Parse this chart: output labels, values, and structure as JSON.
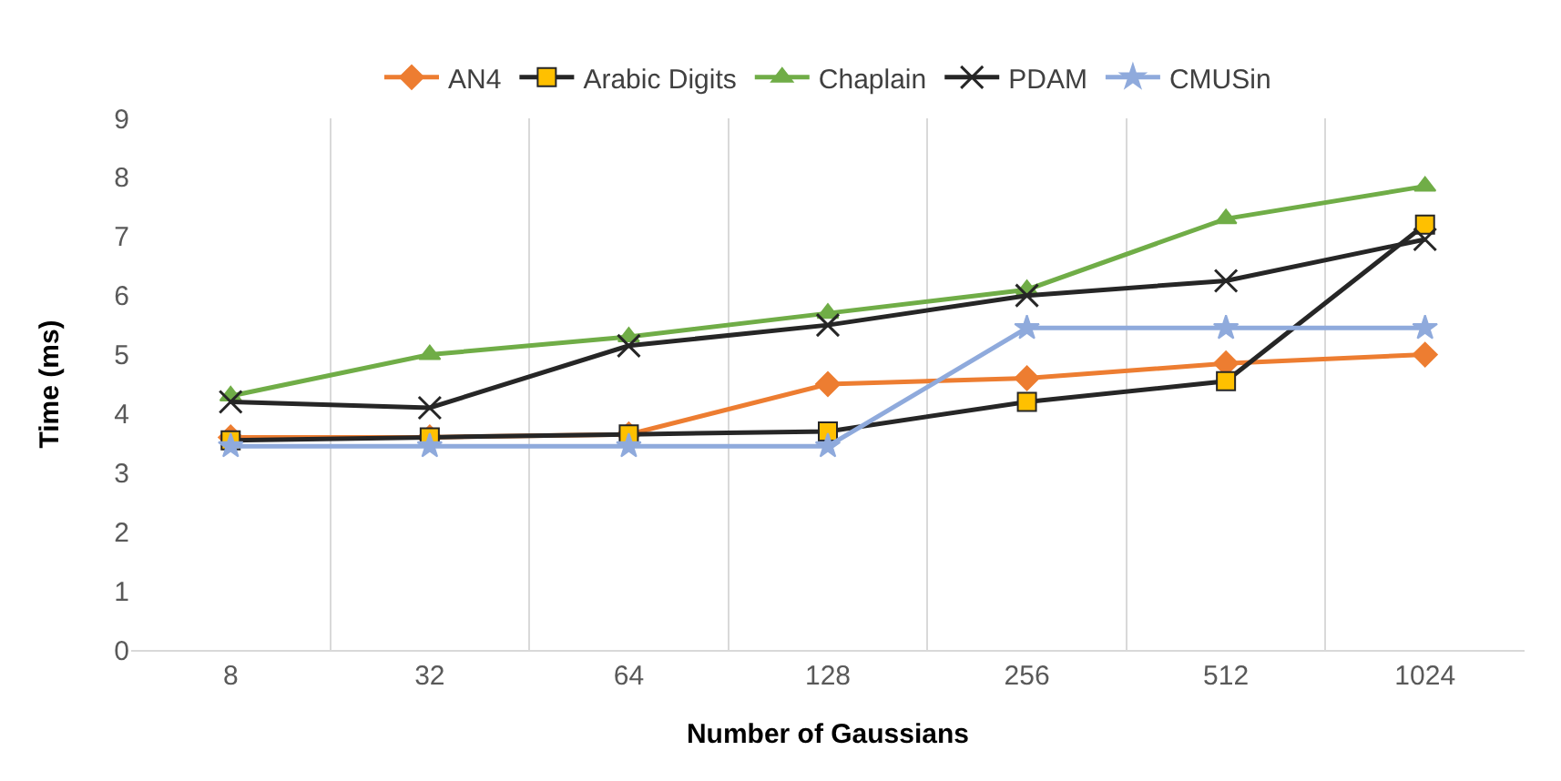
{
  "chart_data": {
    "type": "line",
    "xlabel": "Number of Gaussians",
    "ylabel": "Time (ms)",
    "categories": [
      "8",
      "32",
      "64",
      "128",
      "256",
      "512",
      "1024"
    ],
    "ylim": [
      0,
      9
    ],
    "yticks": [
      0,
      1,
      2,
      3,
      4,
      5,
      6,
      7,
      8,
      9
    ],
    "grid": "x",
    "legend": "top",
    "series": [
      {
        "name": "AN4",
        "color": "#ed7d31",
        "marker": "diamond",
        "values": [
          3.6,
          3.6,
          3.65,
          4.5,
          4.6,
          4.85,
          5.0
        ]
      },
      {
        "name": "Arabic Digits",
        "color": "#262626",
        "marker": "square",
        "values": [
          3.55,
          3.6,
          3.65,
          3.7,
          4.2,
          4.55,
          7.2
        ]
      },
      {
        "name": "Chaplain",
        "color": "#70ad47",
        "marker": "triangle",
        "values": [
          4.3,
          5.0,
          5.3,
          5.7,
          6.1,
          7.3,
          7.85
        ]
      },
      {
        "name": "PDAM",
        "color": "#262626",
        "marker": "cross",
        "values": [
          4.2,
          4.1,
          5.15,
          5.5,
          6.0,
          6.25,
          6.95
        ]
      },
      {
        "name": "CMUSin",
        "color": "#8faadc",
        "marker": "star",
        "values": [
          3.45,
          3.45,
          3.45,
          3.45,
          5.45,
          5.45,
          5.45
        ]
      }
    ]
  }
}
